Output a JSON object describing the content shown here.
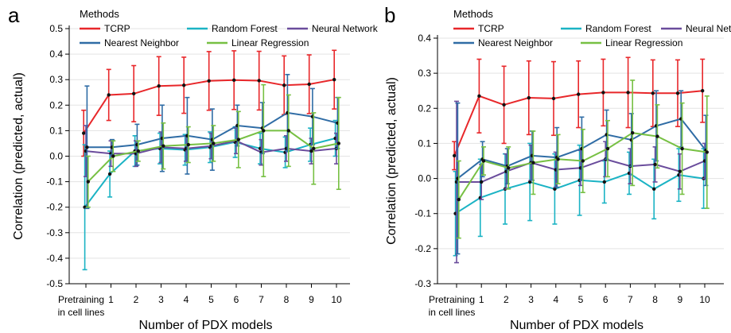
{
  "legend": {
    "title": "Methods",
    "entries": [
      {
        "name": "TCRP",
        "color": "#e8272a"
      },
      {
        "name": "Random Forest",
        "color": "#1bb3c4"
      },
      {
        "name": "Neural Network",
        "color": "#6a4c9c"
      },
      {
        "name": "Nearest Neighbor",
        "color": "#2f6ca5"
      },
      {
        "name": "Linear Regression",
        "color": "#77c043"
      }
    ]
  },
  "chart_data": [
    {
      "type": "line",
      "panel": "a",
      "xlabel": "Number of PDX models",
      "ylabel": "Correlation (predicted, actual)",
      "x": [
        0,
        1,
        2,
        3,
        4,
        5,
        6,
        7,
        8,
        9,
        10
      ],
      "x_tick_labels": [
        "Pretraining\nin cell lines",
        "1",
        "2",
        "3",
        "4",
        "5",
        "6",
        "7",
        "8",
        "9",
        "10"
      ],
      "ylim": [
        -0.5,
        0.5
      ],
      "yticks": [
        -0.5,
        -0.4,
        -0.3,
        -0.2,
        -0.1,
        0.0,
        0.1,
        0.2,
        0.3,
        0.4,
        0.5
      ],
      "ytick_labels": [
        "-0.5",
        "-0.4",
        "-0.3",
        "-0.2",
        "-0.1",
        "0.0",
        "0.1",
        "0.2",
        "0.3",
        "0.4",
        "0.5"
      ],
      "grid": "horizontal",
      "legend_position": "top",
      "series": [
        {
          "name": "TCRP",
          "values": [
            0.09,
            0.24,
            0.245,
            0.275,
            0.278,
            0.295,
            0.298,
            0.296,
            0.278,
            0.282,
            0.3
          ],
          "err": [
            0.09,
            0.1,
            0.11,
            0.115,
            0.11,
            0.115,
            0.115,
            0.115,
            0.115,
            0.115,
            0.115
          ]
        },
        {
          "name": "Random Forest",
          "values": [
            -0.2,
            -0.07,
            0.02,
            0.03,
            0.025,
            0.035,
            0.055,
            0.03,
            0.015,
            0.045,
            0.07
          ],
          "err": [
            0.245,
            0.09,
            0.06,
            0.06,
            0.06,
            0.06,
            0.06,
            0.06,
            0.06,
            0.065,
            0.07
          ]
        },
        {
          "name": "Neural Network",
          "values": [
            0.02,
            0.01,
            0.01,
            0.035,
            0.03,
            0.04,
            0.06,
            0.015,
            0.03,
            0.02,
            0.03
          ],
          "err": [
            0.1,
            0.05,
            0.05,
            0.06,
            0.05,
            0.05,
            0.05,
            0.05,
            0.05,
            0.05,
            0.06
          ]
        },
        {
          "name": "Nearest Neighbor",
          "values": [
            0.035,
            0.035,
            0.045,
            0.07,
            0.08,
            0.065,
            0.12,
            0.11,
            0.17,
            0.155,
            0.13
          ],
          "err": [
            0.24,
            0.03,
            0.08,
            0.13,
            0.15,
            0.12,
            0.08,
            0.1,
            0.15,
            0.11,
            0.1
          ]
        },
        {
          "name": "Linear Regression",
          "values": [
            -0.1,
            0.0,
            0.02,
            0.04,
            0.045,
            0.05,
            0.065,
            0.1,
            0.1,
            0.03,
            0.05
          ],
          "err": [
            0.1,
            0.06,
            0.04,
            0.09,
            0.07,
            0.07,
            0.11,
            0.18,
            0.14,
            0.14,
            0.18
          ]
        }
      ]
    },
    {
      "type": "line",
      "panel": "b",
      "xlabel": "Number of PDX models",
      "ylabel": "Correlation (predicted, actual)",
      "x": [
        0,
        1,
        2,
        3,
        4,
        5,
        6,
        7,
        8,
        9,
        10
      ],
      "x_tick_labels": [
        "Pretraining\nin cell lines",
        "1",
        "2",
        "3",
        "4",
        "5",
        "6",
        "7",
        "8",
        "9",
        "10"
      ],
      "ylim": [
        -0.3,
        0.4
      ],
      "yticks": [
        -0.3,
        -0.2,
        -0.1,
        0.0,
        0.1,
        0.2,
        0.3,
        0.4
      ],
      "ytick_labels": [
        "-0.3",
        "-0.2",
        "-0.1",
        "0.0",
        "0.1",
        "0.2",
        "0.3",
        "0.4"
      ],
      "grid": "horizontal",
      "legend_position": "top",
      "series": [
        {
          "name": "TCRP",
          "values": [
            0.065,
            0.235,
            0.21,
            0.23,
            0.228,
            0.24,
            0.245,
            0.245,
            0.243,
            0.243,
            0.25
          ],
          "err": [
            0.04,
            0.105,
            0.11,
            0.105,
            0.105,
            0.095,
            0.095,
            0.1,
            0.095,
            0.095,
            0.09
          ]
        },
        {
          "name": "Random Forest",
          "values": [
            -0.1,
            -0.055,
            -0.03,
            -0.01,
            -0.03,
            -0.005,
            -0.01,
            0.015,
            -0.03,
            0.01,
            0.0
          ],
          "err": [
            0.12,
            0.11,
            0.1,
            0.11,
            0.1,
            0.1,
            0.06,
            0.06,
            0.085,
            0.075,
            0.085
          ]
        },
        {
          "name": "Neural Network",
          "values": [
            -0.01,
            -0.01,
            0.02,
            0.045,
            0.025,
            0.03,
            0.055,
            0.035,
            0.04,
            0.02,
            0.05
          ],
          "err": [
            0.23,
            0.05,
            0.05,
            0.05,
            0.05,
            0.05,
            0.05,
            0.05,
            0.05,
            0.05,
            0.05
          ]
        },
        {
          "name": "Nearest Neighbor",
          "values": [
            0.0,
            0.055,
            0.035,
            0.065,
            0.06,
            0.085,
            0.125,
            0.11,
            0.15,
            0.17,
            0.08
          ],
          "err": [
            0.215,
            0.05,
            0.05,
            0.07,
            0.085,
            0.09,
            0.07,
            0.075,
            0.1,
            0.08,
            0.1
          ]
        },
        {
          "name": "Linear Regression",
          "values": [
            -0.06,
            0.05,
            0.03,
            0.045,
            0.055,
            0.05,
            0.085,
            0.13,
            0.12,
            0.085,
            0.075
          ],
          "err": [
            0.11,
            0.04,
            0.06,
            0.09,
            0.07,
            0.09,
            0.08,
            0.15,
            0.09,
            0.13,
            0.16
          ]
        }
      ]
    }
  ],
  "panels": [
    {
      "letter": "a"
    },
    {
      "letter": "b"
    }
  ]
}
